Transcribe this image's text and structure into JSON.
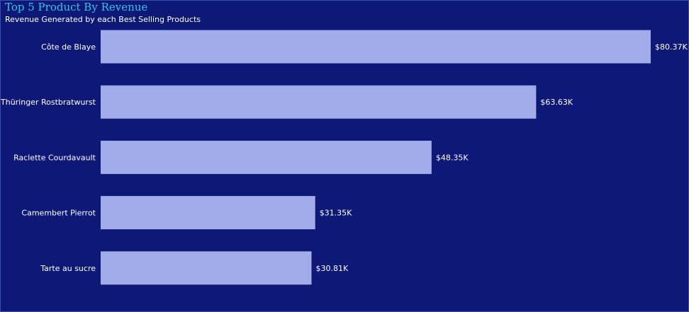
{
  "colors": {
    "background": "#0e1877",
    "bar": "#a3acea",
    "title": "#33c4ee",
    "text": "#ffffff"
  },
  "chart_data": {
    "type": "bar",
    "orientation": "horizontal",
    "title": "Top 5 Product By Revenue",
    "subtitle": "Revenue Generated by each Best Selling Products",
    "categories": [
      "Côte de Blaye",
      "Thüringer Rostbratwurst",
      "Raclette Courdavault",
      "Camembert Pierrot",
      "Tarte au sucre"
    ],
    "values": [
      80.37,
      63.63,
      48.35,
      31.35,
      30.81
    ],
    "value_labels": [
      "$80.37K",
      "$63.63K",
      "$48.35K",
      "$31.35K",
      "$30.81K"
    ],
    "xlim": [
      0,
      80.37
    ],
    "grid": false,
    "legend": "none"
  }
}
